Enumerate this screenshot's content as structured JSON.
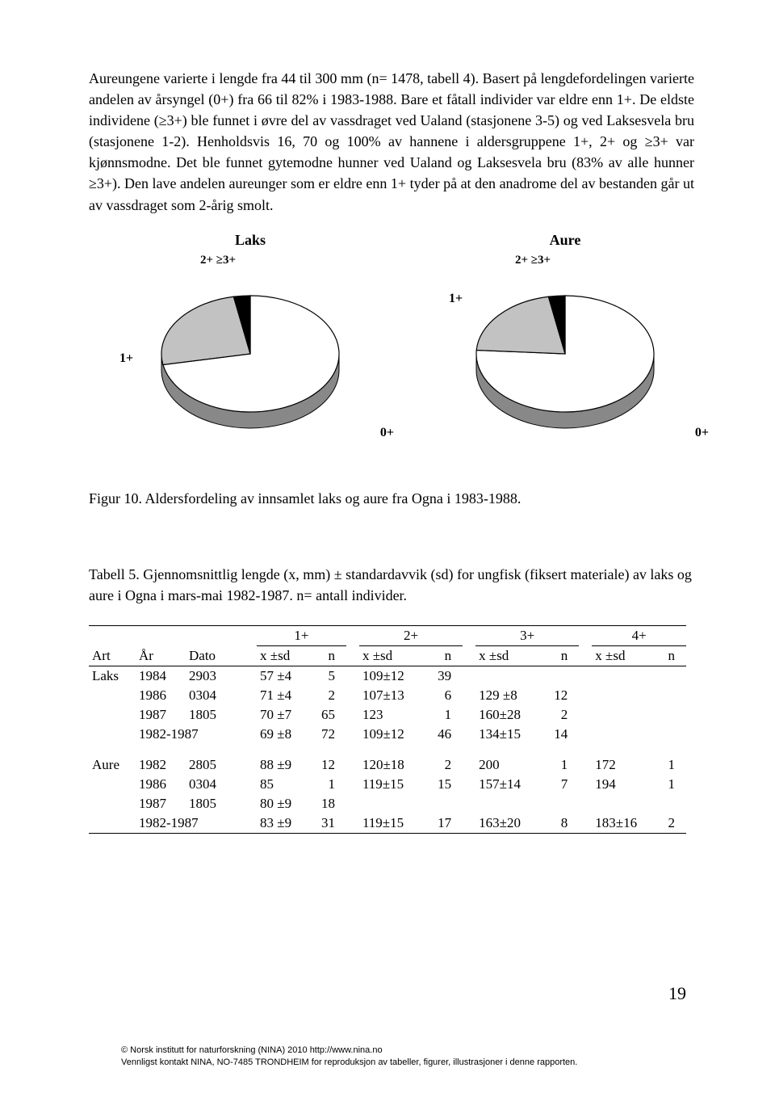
{
  "body_text": "Aureungene varierte i lengde fra 44 til 300 mm (n= 1478, tabell 4). Basert på lengdefordelingen varierte andelen av årsyngel (0+) fra 66 til 82% i 1983-1988. Bare et fåtall individer var eldre enn 1+. De eldste individene (≥3+) ble funnet i øvre del av vassdraget ved Ualand (stasjonene 3-5) og ved Laksesvela bru (stasjonene 1-2). Henholdsvis 16, 70 og 100% av hannene i aldersgruppene 1+, 2+ og ≥3+ var kjønnsmodne. Det ble funnet gytemodne hunner ved Ualand og Laksesvela bru (83% av alle hunner ≥3+). Den lave andelen aureunger som er eldre enn 1+ tyder på at den anadrome del av bestanden går ut av vassdraget som 2-årig smolt.",
  "figure": {
    "caption": "Figur 10. Aldersfordeling av innsamlet laks og aure fra Ogna i 1983-1988.",
    "pies": {
      "laks": {
        "title": "Laks",
        "label_top": "2+ ≥3+",
        "labels": {
          "zero_plus": "0+",
          "one_plus": "1+"
        },
        "slices": [
          {
            "name": "0+",
            "fraction": 0.72,
            "color": "#ffffff"
          },
          {
            "name": "1+",
            "fraction": 0.25,
            "color": "#c2c2c2"
          },
          {
            "name": "2+≥3+",
            "fraction": 0.03,
            "color": "#000000"
          }
        ],
        "stroke": "#000000",
        "background": "#ffffff"
      },
      "aure": {
        "title": "Aure",
        "label_top": "2+ ≥3+",
        "labels": {
          "zero_plus": "0+",
          "one_plus": "1+"
        },
        "slices": [
          {
            "name": "0+",
            "fraction": 0.76,
            "color": "#ffffff"
          },
          {
            "name": "1+",
            "fraction": 0.21,
            "color": "#c2c2c2"
          },
          {
            "name": "2+≥3+",
            "fraction": 0.03,
            "color": "#000000"
          }
        ],
        "stroke": "#000000",
        "background": "#ffffff"
      }
    }
  },
  "table": {
    "caption": "Tabell 5. Gjennomsnittlig lengde (x, mm) ± standardavvik (sd) for ungfisk (fiksert materiale) av laks og aure i Ogna i mars-mai 1982-1987. n= antall individer.",
    "group_headers": [
      "1+",
      "2+",
      "3+",
      "4+"
    ],
    "sub_headers": {
      "art": "Art",
      "aar": "År",
      "dato": "Dato",
      "xsd": "x ±sd",
      "n": "n"
    },
    "rows": [
      {
        "art": "Laks",
        "aar": "1984",
        "dato": "2903",
        "c1": "57 ±4",
        "n1": "5",
        "c2": "109±12",
        "n2": "39",
        "c3": "",
        "n3": "",
        "c4": "",
        "n4": ""
      },
      {
        "art": "",
        "aar": "1986",
        "dato": "0304",
        "c1": "71 ±4",
        "n1": "2",
        "c2": "107±13",
        "n2": "6",
        "c3": "129 ±8",
        "n3": "12",
        "c4": "",
        "n4": ""
      },
      {
        "art": "",
        "aar": "1987",
        "dato": "1805",
        "c1": "70 ±7",
        "n1": "65",
        "c2": "123",
        "n2": "1",
        "c3": "160±28",
        "n3": "2",
        "c4": "",
        "n4": ""
      },
      {
        "art": "",
        "aar": "1982-1987",
        "dato": "",
        "c1": "69 ±8",
        "n1": "72",
        "c2": "109±12",
        "n2": "46",
        "c3": "134±15",
        "n3": "14",
        "c4": "",
        "n4": ""
      },
      {
        "gap": true
      },
      {
        "art": "Aure",
        "aar": "1982",
        "dato": "2805",
        "c1": "88 ±9",
        "n1": "12",
        "c2": "120±18",
        "n2": "2",
        "c3": "200",
        "n3": "1",
        "c4": "172",
        "n4": "1"
      },
      {
        "art": "",
        "aar": "1986",
        "dato": "0304",
        "c1": "85",
        "n1": "1",
        "c2": "119±15",
        "n2": "15",
        "c3": "157±14",
        "n3": "7",
        "c4": "194",
        "n4": "1"
      },
      {
        "art": "",
        "aar": "1987",
        "dato": "1805",
        "c1": "80 ±9",
        "n1": "18",
        "c2": "",
        "n2": "",
        "c3": "",
        "n3": "",
        "c4": "",
        "n4": ""
      },
      {
        "art": "",
        "aar": "1982-1987",
        "dato": "",
        "c1": "83 ±9",
        "n1": "31",
        "c2": "119±15",
        "n2": "17",
        "c3": "163±20",
        "n3": "8",
        "c4": "183±16",
        "n4": "2"
      }
    ]
  },
  "page_number": "19",
  "footer": {
    "line1": "© Norsk institutt for naturforskning (NINA) 2010 http://www.nina.no",
    "line2": "Vennligst kontakt NINA, NO-7485 TRONDHEIM for reproduksjon av tabeller, figurer, illustrasjoner i denne rapporten."
  }
}
